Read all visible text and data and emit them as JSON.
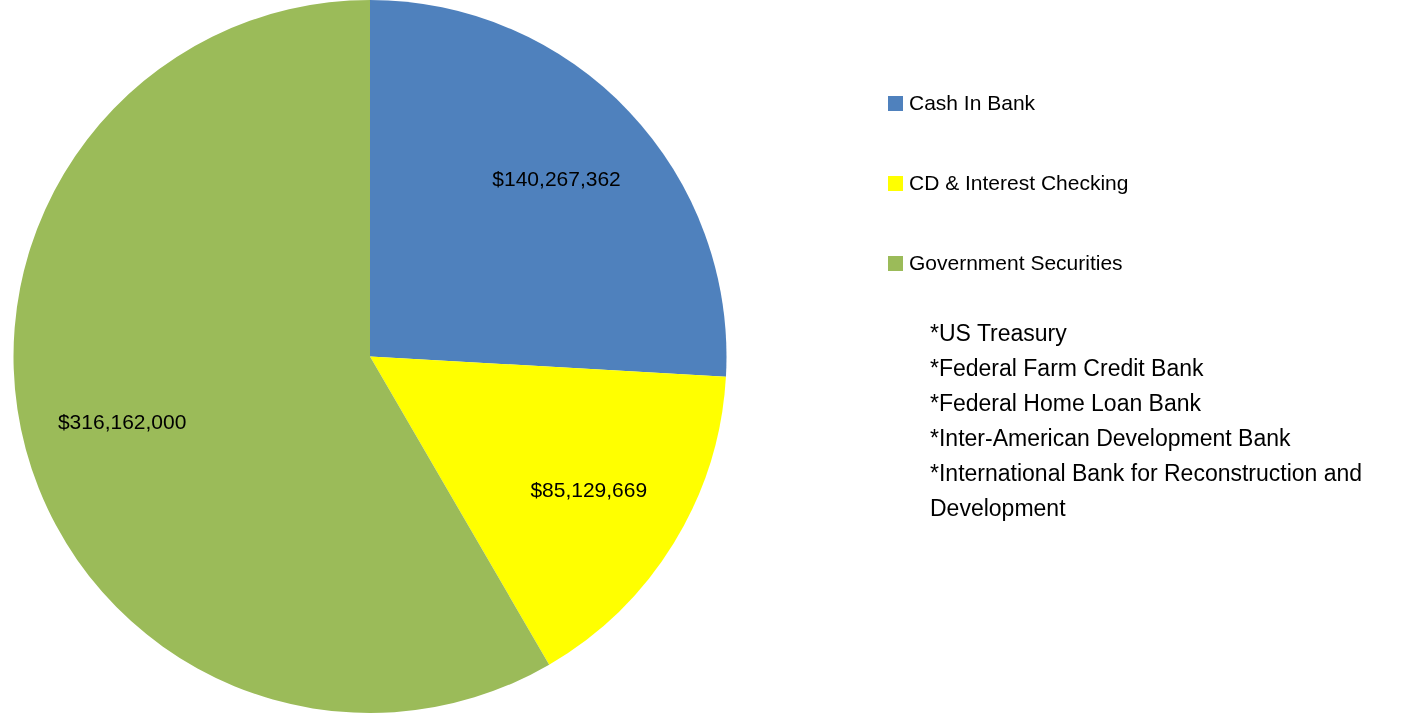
{
  "chart_data": {
    "type": "pie",
    "categories": [
      "Cash In Bank",
      "CD & Interest Checking",
      "Government Securities"
    ],
    "values": [
      140267362,
      85129669,
      316162000
    ],
    "colors": [
      "#4f81bd",
      "#ffff00",
      "#9bbb59"
    ],
    "value_labels": [
      "$140,267,362",
      "$85,129,669",
      "$316,162,000"
    ],
    "legend": "right",
    "annotations": [
      "*US Treasury",
      "*Federal Farm Credit Bank",
      "*Federal Home Loan Bank",
      "*Inter-American Development Bank",
      "*International Bank for Reconstruction and Development"
    ]
  }
}
